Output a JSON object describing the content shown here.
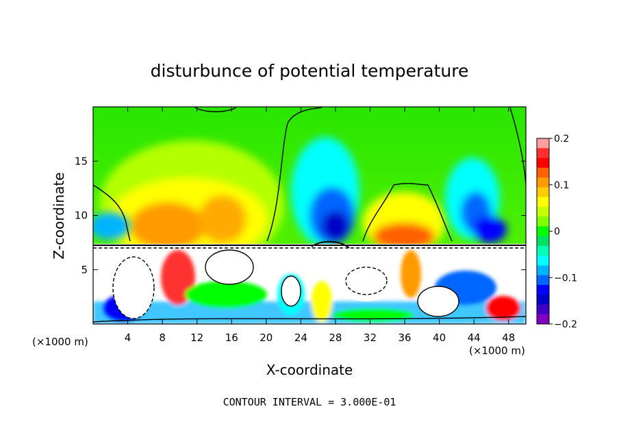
{
  "chart_data": {
    "type": "heatmap",
    "title": "disturbunce of potential temperature",
    "xlabel": "X-coordinate",
    "ylabel": "Z-coordinate",
    "x_unit": "(×1000 m)",
    "x_unit_right": "(×1000 m)",
    "xlim": [
      0,
      50
    ],
    "ylim": [
      0,
      20
    ],
    "xticks": [
      4,
      8,
      12,
      16,
      20,
      24,
      28,
      32,
      36,
      40,
      44,
      48
    ],
    "yticks": [
      5,
      10,
      15
    ],
    "colorbar": {
      "range": [
        -0.2,
        0.2
      ],
      "tick_values": [
        0.2,
        0.1,
        0,
        -0.1,
        -0.2
      ],
      "tick_labels": [
        "0.2",
        "0.1",
        "0",
        "−0.1",
        "−0.2"
      ],
      "colors": [
        "#ffa0a0",
        "#ff3030",
        "#ff0000",
        "#ff6000",
        "#ff9a00",
        "#ffcc00",
        "#ffff00",
        "#c8ff00",
        "#80ff00",
        "#00ff00",
        "#00e060",
        "#00ffb4",
        "#00ffff",
        "#00b4ff",
        "#0066ff",
        "#0000ff",
        "#0000c8",
        "#4000c0",
        "#8000c0"
      ]
    },
    "footer": "CONTOUR INTERVAL = 3.000E-01",
    "contour_interval": 0.3,
    "grid": false
  }
}
